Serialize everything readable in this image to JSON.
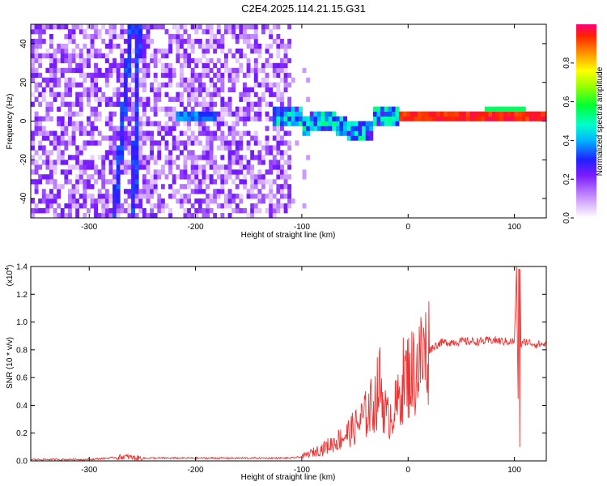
{
  "title": "C2E4.2025.114.21.15.G31",
  "chart_data": [
    {
      "type": "heatmap",
      "xlabel": "Height of straight line (km)",
      "ylabel": "Frequency (Hz)",
      "xlim": [
        -355,
        130
      ],
      "ylim": [
        -50,
        50
      ],
      "xticks": [
        -300,
        -200,
        -100,
        0,
        100
      ],
      "yticks": [
        -40,
        -20,
        0,
        20,
        40
      ],
      "colorbar": {
        "label": "Normalized spectral amplitude",
        "range": [
          0,
          1
        ],
        "ticks": [
          "0.0",
          "0.2",
          "0.4",
          "0.6",
          "0.8"
        ]
      },
      "features": {
        "noise_region_x": [
          -355,
          -110
        ],
        "signal_start_x": -130,
        "carrier_frequency_hz": 1.5,
        "carrier_strong_from_x": -10,
        "diagonal_streaks": [
          {
            "x_at_top": -262,
            "x_at_bottom": -278
          },
          {
            "x_at_top": -255,
            "x_at_bottom": -260
          }
        ]
      }
    },
    {
      "type": "line",
      "xlabel": "Height of straight line (km)",
      "ylabel": "SNR (10 * v/v)",
      "y_multiplier": "(x10",
      "y_multiplier_exp": "4",
      "y_multiplier_close": ")",
      "xlim": [
        -355,
        130
      ],
      "ylim": [
        0,
        1.4
      ],
      "xticks": [
        -300,
        -200,
        -100,
        0,
        100
      ],
      "yticks": [
        "0.0",
        "0.2",
        "0.4",
        "0.6",
        "0.8",
        "1.0",
        "1.2",
        "1.4"
      ],
      "series": [
        {
          "name": "SNR",
          "color": "#ee3333",
          "x": [
            -355,
            -300,
            -265,
            -255,
            -200,
            -150,
            -110,
            -100,
            -90,
            -80,
            -70,
            -60,
            -50,
            -40,
            -30,
            -27,
            -20,
            -10,
            -5,
            0,
            5,
            10,
            15,
            20,
            30,
            50,
            70,
            80,
            90,
            100,
            102,
            104,
            105,
            110,
            120,
            130
          ],
          "y": [
            0.01,
            0.01,
            0.03,
            0.02,
            0.02,
            0.02,
            0.02,
            0.03,
            0.06,
            0.09,
            0.13,
            0.18,
            0.24,
            0.33,
            0.45,
            0.57,
            0.3,
            0.4,
            0.58,
            0.62,
            0.64,
            0.7,
            0.76,
            0.8,
            0.85,
            0.86,
            0.86,
            0.87,
            0.86,
            0.86,
            1.38,
            0.1,
            0.82,
            0.86,
            0.84,
            0.84
          ]
        }
      ]
    }
  ]
}
